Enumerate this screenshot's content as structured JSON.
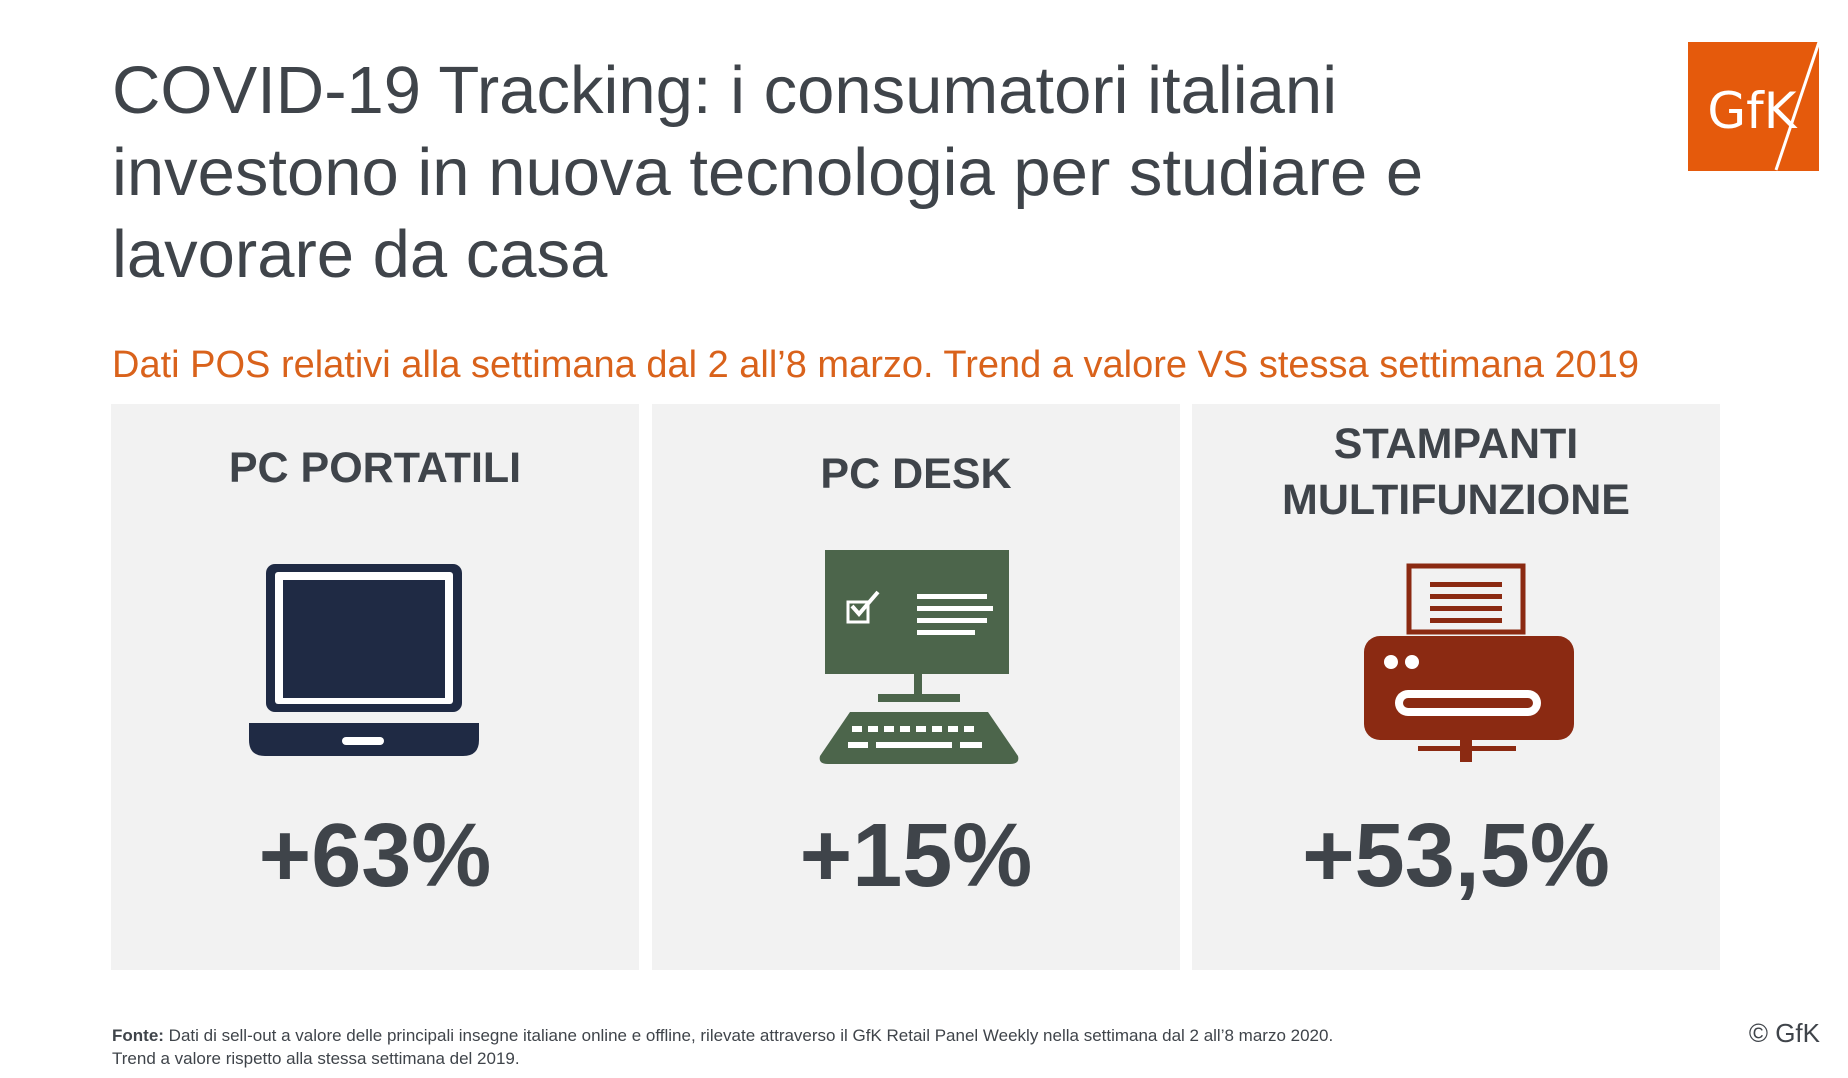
{
  "header": {
    "title_strong": "COVID-19 Tracking",
    "title_rest": ": i consumatori italiani investono in nuova tecnologia per studiare e lavorare da casa",
    "subtitle": "Dati POS relativi alla settimana dal 2 all’8 marzo. Trend a valore VS stessa settimana 2019"
  },
  "logo": {
    "text": "GfK",
    "color": "#e55a0c"
  },
  "panels": [
    {
      "heading": "PC PORTATILI",
      "icon": "laptop-icon",
      "value": "+63%",
      "icon_color": "#1f2a44"
    },
    {
      "heading": "PC DESK",
      "icon": "desktop-computer-icon",
      "value": "+15%",
      "icon_color": "#4c654b"
    },
    {
      "heading": "STAMPANTI MULTIFUNZIONE",
      "icon": "printer-icon",
      "value": "+53,5%",
      "icon_color": "#8b2a12"
    }
  ],
  "footer": {
    "source_label": "Fonte:",
    "source_line1": " Dati di sell-out a valore delle principali insegne italiane online e offline, rilevate attraverso il GfK Retail Panel Weekly nella settimana dal 2 all’8 marzo 2020.",
    "source_line2": "Trend a valore rispetto alla stessa settimana del 2019.",
    "copyright": "© GfK"
  }
}
